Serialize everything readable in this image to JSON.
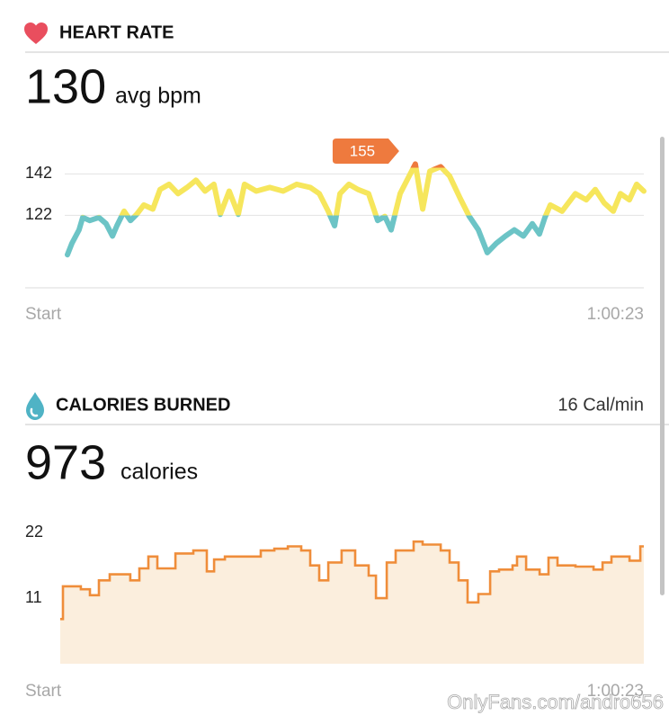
{
  "chart_data": [
    {
      "type": "line",
      "title": "HEART RATE",
      "summary": {
        "value": 130,
        "unit": "avg bpm"
      },
      "x": [
        0,
        28,
        73,
        96,
        141,
        198,
        243,
        283,
        311,
        356,
        396,
        435,
        480,
        537,
        582,
        639,
        695,
        752,
        808,
        865,
        921,
        961,
        1017,
        1074,
        1113,
        1187,
        1272,
        1356,
        1441,
        1526,
        1583,
        1639,
        1679,
        1713,
        1769,
        1826,
        1893,
        1950,
        1995,
        2035,
        2091,
        2148,
        2187,
        2233,
        2278,
        2346,
        2402,
        2470,
        2526,
        2583,
        2639,
        2696,
        2753,
        2809,
        2866,
        2922,
        2967,
        3001,
        3035,
        3109,
        3193,
        3261,
        3318,
        3374,
        3431,
        3476,
        3532,
        3578,
        3623
      ],
      "values": [
        103,
        108.5,
        115,
        121,
        119.5,
        121,
        118,
        112,
        117,
        124,
        119.5,
        122.5,
        127,
        125,
        134.5,
        137,
        132.5,
        135.5,
        139,
        133.7,
        137,
        122.5,
        133.7,
        122.5,
        137,
        133.7,
        135.5,
        133.7,
        137,
        135.5,
        132.5,
        124,
        117,
        132.5,
        137,
        134.5,
        132.5,
        119.5,
        121.5,
        115,
        132.5,
        141,
        146.8,
        125,
        143.3,
        145.5,
        141,
        130,
        121.5,
        115,
        104,
        108.5,
        112,
        115,
        112,
        118,
        113,
        121,
        127,
        124,
        132.5,
        129.5,
        134.5,
        128,
        124,
        132.5,
        129.5,
        137,
        133.7
      ],
      "xlim": [
        0,
        3623
      ],
      "xticks": [
        {
          "value": 0,
          "label": "Start"
        },
        {
          "value": 3623,
          "label": "1:00:23"
        }
      ],
      "ylim": [
        87,
        160
      ],
      "yticks": [
        122,
        142
      ],
      "grid": true,
      "zones": [
        {
          "from": 87,
          "to": 122,
          "color": "#6cc4c6"
        },
        {
          "from": 122,
          "to": 145,
          "color": "#f6e65c"
        },
        {
          "from": 145,
          "to": 160,
          "color": "#ee7a3e"
        }
      ],
      "annotation": {
        "x": 2187,
        "value": 155,
        "color": "#ee7a3e"
      }
    },
    {
      "type": "step_area",
      "title": "CALORIES BURNED",
      "rate": "16 Cal/min",
      "summary": {
        "value": 973,
        "unit": "calories"
      },
      "x": [
        0,
        17,
        128,
        184,
        240,
        307,
        435,
        491,
        547,
        603,
        715,
        826,
        910,
        955,
        1022,
        1161,
        1245,
        1329,
        1413,
        1496,
        1552,
        1608,
        1664,
        1747,
        1831,
        1915,
        1960,
        2027,
        2082,
        2194,
        2250,
        2362,
        2417,
        2473,
        2529,
        2596,
        2669,
        2724,
        2808,
        2836,
        2892,
        2976,
        3031,
        3087,
        3199,
        3311,
        3367,
        3422,
        3534,
        3601
      ],
      "values": [
        7.5,
        13,
        12.5,
        11.5,
        14,
        15,
        14,
        16,
        18,
        16,
        18.5,
        19,
        15.5,
        17.5,
        18,
        18,
        19,
        19.3,
        19.7,
        19,
        16.5,
        14,
        17,
        19,
        16.5,
        14.8,
        11,
        17,
        19,
        20.5,
        20,
        19,
        17,
        14,
        10.3,
        11.7,
        15.5,
        15.8,
        16.5,
        18,
        15.8,
        15,
        17.8,
        16.5,
        16.3,
        15.8,
        17,
        18,
        17.3,
        19.7
      ],
      "xlim": [
        0,
        3623
      ],
      "xticks": [
        {
          "value": 0,
          "label": "Start"
        },
        {
          "value": 3623,
          "label": "1:00:23"
        }
      ],
      "ylim": [
        0,
        24
      ],
      "yticks": [
        11,
        22
      ],
      "grid": false,
      "color": "#ef8d3a",
      "fill": "#fbeedd"
    }
  ],
  "watermark": "OnlyFans.com/andro656"
}
